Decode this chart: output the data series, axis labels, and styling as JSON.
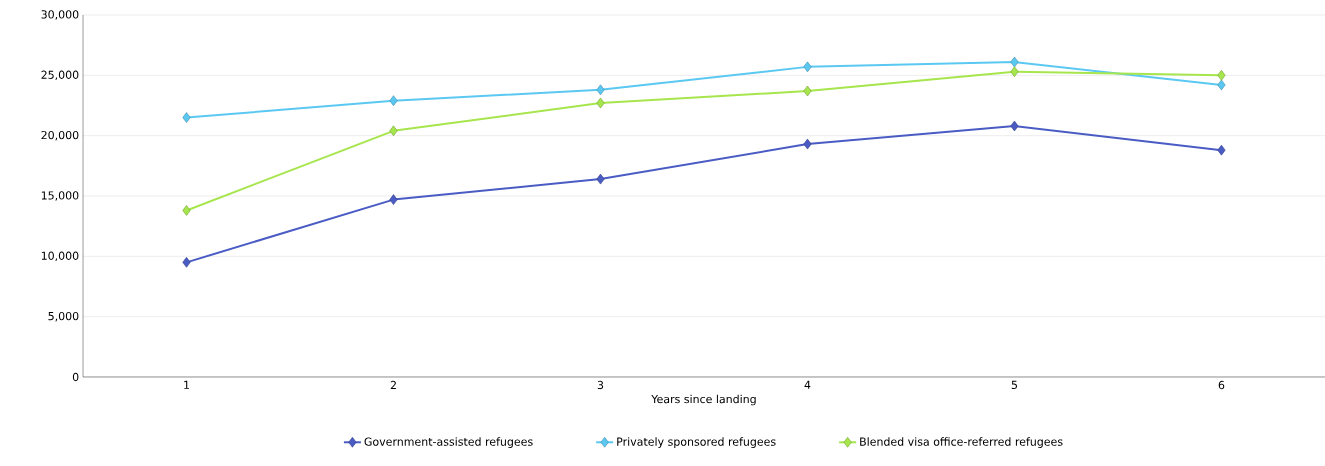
{
  "chart_data": {
    "type": "line",
    "xlabel": "Years since landing",
    "categories": [
      "1",
      "2",
      "3",
      "4",
      "5",
      "6"
    ],
    "series": [
      {
        "name": "Government-assisted refugees",
        "color": "#4a5cc4",
        "values": [
          9500,
          14700,
          16400,
          19300,
          20800,
          18800
        ]
      },
      {
        "name": "Privately sponsored refugees",
        "color": "#5bc8f2",
        "values": [
          21500,
          22900,
          23800,
          25700,
          26100,
          24200
        ]
      },
      {
        "name": "Blended visa office-referred refugees",
        "color": "#a6e64c",
        "values": [
          13800,
          20400,
          22700,
          23700,
          25300,
          25000
        ]
      }
    ],
    "ylim": [
      0,
      30000
    ],
    "yticks": [
      {
        "value": 0,
        "label": "0"
      },
      {
        "value": 5000,
        "label": "5,000"
      },
      {
        "value": 10000,
        "label": "10,000"
      },
      {
        "value": 15000,
        "label": "15,000"
      },
      {
        "value": 20000,
        "label": "20,000"
      },
      {
        "value": 25000,
        "label": "25,000"
      },
      {
        "value": 30000,
        "label": "30,000"
      }
    ],
    "grid": "y",
    "legend": "bottom",
    "marker": "diamond",
    "line_style": "solid"
  }
}
